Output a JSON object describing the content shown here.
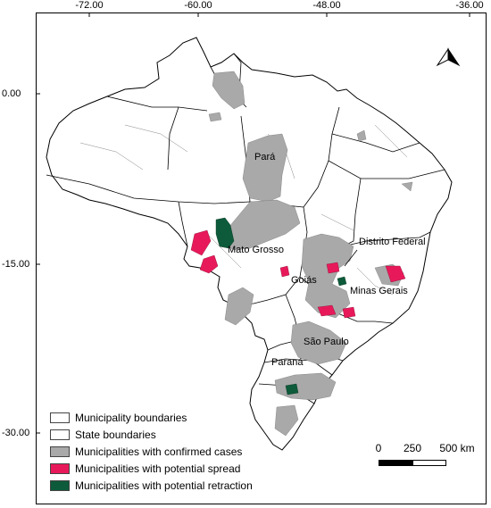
{
  "axes": {
    "top_ticks": [
      "-72.00",
      "-60.00",
      "-48.00",
      "-36.00"
    ],
    "left_ticks": [
      "0.00",
      "-15.00",
      "-30.00"
    ]
  },
  "map_labels": {
    "para": "Pará",
    "mato_grosso": "Mato Grosso",
    "distrito_federal": "Distrito Federal",
    "goias": "Goiás",
    "minas_gerais": "Minas Gerais",
    "sao_paulo": "São Paulo",
    "parana": "Paraná"
  },
  "legend": {
    "items": [
      {
        "label": "Municipality boundaries",
        "color": "#ffffff"
      },
      {
        "label": "State boundaries",
        "color": "#ffffff"
      },
      {
        "label": "Municipalities with confirmed cases",
        "color": "#a9a9a9"
      },
      {
        "label": "Municipalities with potential spread",
        "color": "#e8195a"
      },
      {
        "label": "Municipalities with potential retraction",
        "color": "#0d5b3a"
      }
    ]
  },
  "scale": {
    "labels": [
      "0",
      "250",
      "500 km"
    ]
  },
  "colors": {
    "confirmed": "#a9a9a9",
    "spread": "#e8195a",
    "retraction": "#0d5b3a",
    "boundary": "#000000"
  },
  "north_arrow_icon": "north-arrow-icon"
}
